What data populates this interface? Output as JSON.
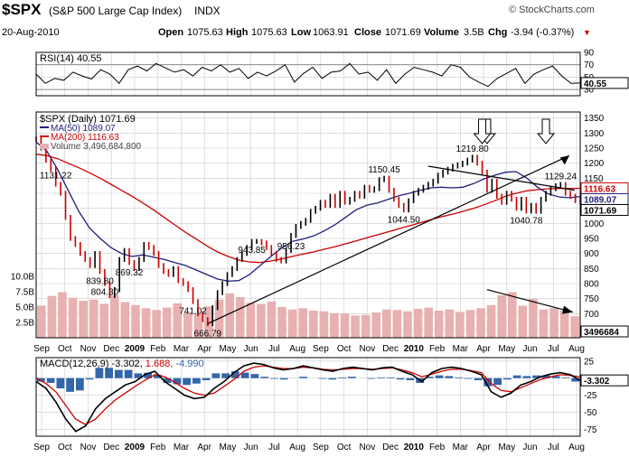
{
  "header": {
    "symbol": "$SPX",
    "name": "(S&P 500 Large Cap Index)",
    "exchange": "INDX",
    "brand": "© StockCharts.com",
    "date": "20-Aug-2010",
    "open_label": "Open",
    "open": "1075.63",
    "high_label": "High",
    "high": "1075.63",
    "low_label": "Low",
    "low": "1063.91",
    "close_label": "Close",
    "close": "1071.69",
    "volume_label": "Volume",
    "volume": "3.5B",
    "chg_label": "Chg",
    "chg": "-3.94 (-0.37%)",
    "chg_arrow": "▼"
  },
  "colors": {
    "price_up": "#000000",
    "price_down": "#cc0000",
    "ma50": "#1f1f7a",
    "ma200": "#cc0000",
    "volume": "#e8b0b0",
    "macd_line": "#000000",
    "signal_line": "#cc0000",
    "histogram": "#3366aa",
    "grid": "#cccccc",
    "down_badge": "#cc0000",
    "up_badge": "#1f1f7a"
  },
  "chart_data": [
    {
      "type": "line",
      "panel": "rsi",
      "legend": "RSI(14) 40.55",
      "ylim": [
        20,
        90
      ],
      "y_ticks": [
        "90",
        "70",
        "50",
        "30"
      ],
      "reference_lines": [
        70,
        30
      ],
      "last_value_label": "40.55",
      "x_labels": [
        "Sep",
        "Oct",
        "Nov",
        "Dec",
        "2009",
        "Feb",
        "Mar",
        "Apr",
        "May",
        "Jun",
        "Jul",
        "Aug",
        "Sep",
        "Oct",
        "Nov",
        "Dec",
        "2010",
        "Feb",
        "Mar",
        "Apr",
        "May",
        "Jun",
        "Jul",
        "Aug"
      ],
      "values": [
        55,
        40,
        48,
        45,
        58,
        52,
        47,
        62,
        55,
        40,
        62,
        68,
        60,
        72,
        65,
        58,
        62,
        52,
        66,
        60,
        70,
        58,
        64,
        48,
        58,
        52,
        60,
        70,
        42,
        56,
        66,
        48,
        58,
        60,
        72,
        55,
        58,
        45,
        62,
        40,
        55,
        66,
        62,
        58,
        52,
        70,
        66,
        50,
        42,
        35,
        48,
        56,
        64,
        40,
        55,
        62,
        68,
        52,
        40,
        40.55
      ]
    },
    {
      "type": "line",
      "panel": "price",
      "title": "$SPX (Daily) 1071.69",
      "ylim": [
        620,
        1370
      ],
      "y_ticks": [
        "1350",
        "1300",
        "1250",
        "1200",
        "1150",
        "1100",
        "1050",
        "1000",
        "950",
        "900",
        "850",
        "800",
        "750",
        "700",
        "650"
      ],
      "volume_axis_ticks": [
        "10.0B",
        "7.5B",
        "5.0B",
        "2.5B"
      ],
      "x_labels": [
        "Sep",
        "Oct",
        "Nov",
        "Dec",
        "2009",
        "Feb",
        "Mar",
        "Apr",
        "May",
        "Jun",
        "Jul",
        "Aug",
        "Sep",
        "Oct",
        "Nov",
        "Dec",
        "2010",
        "Feb",
        "Mar",
        "Apr",
        "May",
        "Jun",
        "Jul",
        "Aug"
      ],
      "series": [
        {
          "name": "MA(50) 1089.07",
          "values": [
            1270,
            1240,
            1180,
            1110,
            1040,
            985,
            950,
            920,
            900,
            890,
            895,
            888,
            880,
            870,
            860,
            845,
            830,
            815,
            808,
            810,
            830,
            860,
            890,
            918,
            940,
            948,
            958,
            975,
            995,
            1020,
            1045,
            1060,
            1068,
            1080,
            1092,
            1100,
            1110,
            1118,
            1120,
            1118,
            1120,
            1132,
            1148,
            1160,
            1170,
            1172,
            1150,
            1120,
            1098,
            1088,
            1085,
            1089.07
          ]
        },
        {
          "name": "MA(200) 1116.63",
          "values": [
            1230,
            1225,
            1215,
            1200,
            1185,
            1168,
            1150,
            1130,
            1110,
            1090,
            1068,
            1045,
            1020,
            995,
            970,
            948,
            925,
            905,
            890,
            878,
            872,
            870,
            875,
            882,
            890,
            898,
            905,
            914,
            922,
            932,
            942,
            952,
            962,
            972,
            982,
            992,
            1002,
            1012,
            1022,
            1030,
            1040,
            1050,
            1062,
            1075,
            1090,
            1100,
            1108,
            1112,
            1115,
            1116,
            1116,
            1116.63
          ]
        },
        {
          "name": "Volume 3,496,684,800",
          "values": [
            5.2,
            6.8,
            7.4,
            6.5,
            6.0,
            6.2,
            5.5,
            6.9,
            5.8,
            5.3,
            4.8,
            4.5,
            4.9,
            5.6,
            4.1,
            3.9,
            5.1,
            6.2,
            7.2,
            6.6,
            5.7,
            5.5,
            5.9,
            5.0,
            4.6,
            4.8,
            4.4,
            4.3,
            4.0,
            3.9,
            3.6,
            3.7,
            4.1,
            4.6,
            4.5,
            4.3,
            4.7,
            4.9,
            4.4,
            4.6,
            4.2,
            4.5,
            4.8,
            5.3,
            6.9,
            7.4,
            5.2,
            6.3,
            4.6,
            4.8,
            4.4,
            3.5
          ]
        }
      ],
      "closes": [
        1280,
        1250,
        1210,
        1180,
        1130,
        1100,
        1020,
        950,
        930,
        900,
        880,
        860,
        900,
        840,
        800,
        760,
        780,
        880,
        910,
        870,
        850,
        880,
        930,
        920,
        900,
        860,
        840,
        830,
        850,
        810,
        800,
        780,
        740,
        700,
        680,
        666.79,
        720,
        770,
        800,
        830,
        850,
        880,
        900,
        920,
        940,
        940,
        935,
        920,
        900,
        880,
        875,
        910,
        960,
        990,
        1000,
        1010,
        1040,
        1050,
        1070,
        1060,
        1090,
        1060,
        1100,
        1070,
        1080,
        1100,
        1090,
        1120,
        1110,
        1115,
        1145,
        1150,
        1110,
        1080,
        1060,
        1044.5,
        1075,
        1100,
        1110,
        1120,
        1130,
        1140,
        1160,
        1170,
        1180,
        1190,
        1195,
        1200,
        1210,
        1219.8,
        1200,
        1170,
        1110,
        1140,
        1090,
        1070,
        1100,
        1080,
        1050,
        1080,
        1040.78,
        1060,
        1040,
        1080,
        1100,
        1115,
        1125,
        1129.24,
        1100,
        1090,
        1075.63,
        1071.69
      ],
      "price_labels": [
        {
          "text": "943.85",
          "value": 943.85
        },
        {
          "text": "839.80",
          "value": 839.8
        },
        {
          "text": "741.02",
          "value": 741.02
        },
        {
          "text": "804.30",
          "value": 804.3
        },
        {
          "text": "666.79",
          "value": 666.79
        },
        {
          "text": "956.23",
          "value": 956.23
        },
        {
          "text": "869.32",
          "value": 869.32
        },
        {
          "text": "1150.45",
          "value": 1150.45
        },
        {
          "text": "1044.50",
          "value": 1044.5
        },
        {
          "text": "1219.80",
          "value": 1219.8
        },
        {
          "text": "1131.22",
          "value": 1131.22
        },
        {
          "text": "1129.24",
          "value": 1129.24
        },
        {
          "text": "1040.78",
          "value": 1040.78
        }
      ],
      "right_badges": [
        {
          "text": "1116.63",
          "color": "down_badge"
        },
        {
          "text": "1089.07",
          "color": "up_badge"
        },
        {
          "text": "1071.69",
          "color": "price_up"
        }
      ],
      "volume_badge": "3496684"
    },
    {
      "type": "line",
      "panel": "macd",
      "legend_label": "MACD(12,26,9)",
      "legend_values": [
        "-3.302",
        "1.688",
        "-4.990"
      ],
      "ylim": [
        -85,
        30
      ],
      "y_ticks": [
        "25",
        "0",
        "-25",
        "-50",
        "-75"
      ],
      "last_value_label": "-3.302",
      "x_labels": [
        "Sep",
        "Oct",
        "Nov",
        "Dec",
        "2009",
        "Feb",
        "Mar",
        "Apr",
        "May",
        "Jun",
        "Jul",
        "Aug",
        "Sep",
        "Oct",
        "Nov",
        "Dec",
        "2010",
        "Feb",
        "Mar",
        "Apr",
        "May",
        "Jun",
        "Jul",
        "Aug"
      ],
      "series": [
        {
          "name": "MACD",
          "values": [
            -5,
            -15,
            -35,
            -60,
            -78,
            -70,
            -45,
            -30,
            -20,
            -10,
            -5,
            5,
            10,
            -5,
            -15,
            -25,
            -30,
            -28,
            -15,
            -5,
            8,
            18,
            22,
            20,
            15,
            12,
            14,
            18,
            15,
            12,
            10,
            14,
            16,
            14,
            12,
            15,
            16,
            10,
            5,
            -5,
            8,
            14,
            16,
            14,
            10,
            5,
            -20,
            -28,
            -22,
            -10,
            -5,
            2,
            6,
            8,
            5,
            -3.302
          ]
        },
        {
          "name": "Signal",
          "values": [
            0,
            -8,
            -20,
            -40,
            -60,
            -68,
            -60,
            -45,
            -32,
            -22,
            -12,
            -3,
            5,
            2,
            -6,
            -15,
            -22,
            -25,
            -22,
            -12,
            -2,
            10,
            16,
            18,
            16,
            14,
            14,
            16,
            15,
            13,
            12,
            13,
            14,
            14,
            13,
            14,
            15,
            12,
            8,
            2,
            6,
            10,
            13,
            13,
            11,
            8,
            -8,
            -18,
            -20,
            -14,
            -8,
            -2,
            2,
            5,
            4,
            1.688
          ]
        },
        {
          "name": "Histogram",
          "values": [
            -5,
            -7,
            -15,
            -20,
            -18,
            -2,
            15,
            15,
            12,
            12,
            7,
            8,
            5,
            -7,
            -9,
            -10,
            -8,
            -3,
            7,
            7,
            10,
            8,
            6,
            2,
            -1,
            -2,
            0,
            2,
            0,
            -1,
            -2,
            1,
            2,
            0,
            -1,
            1,
            1,
            -2,
            -3,
            -7,
            2,
            4,
            3,
            1,
            -1,
            -3,
            -12,
            -10,
            -2,
            4,
            3,
            4,
            4,
            3,
            1,
            -4.99
          ]
        }
      ]
    }
  ]
}
